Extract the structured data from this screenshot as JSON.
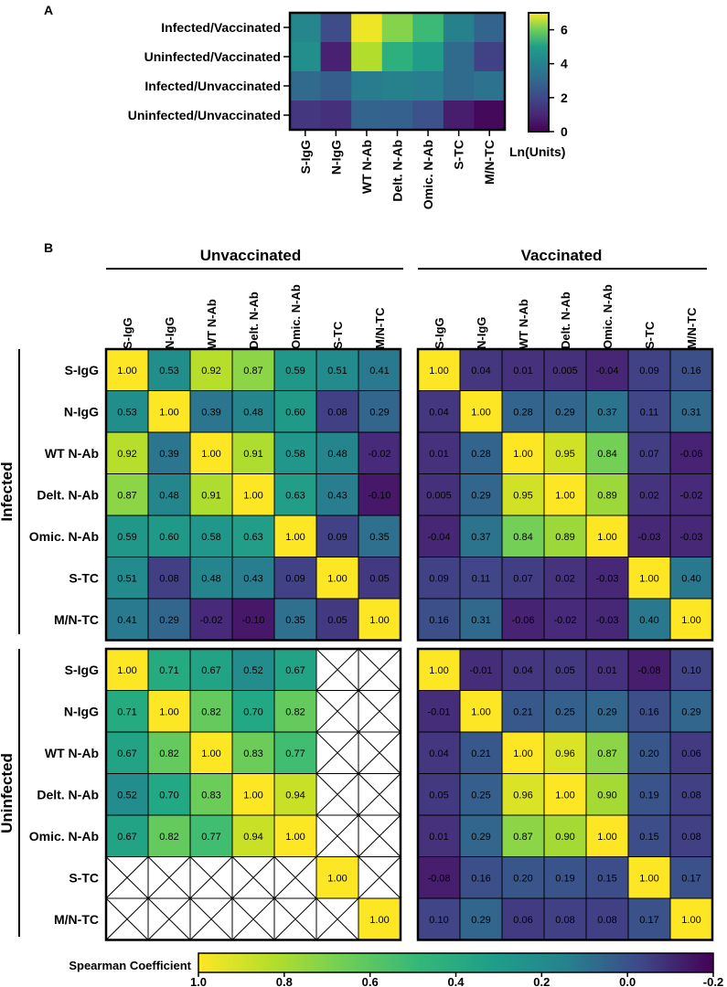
{
  "panel_a": {
    "label": "A",
    "chart_data": {
      "type": "heatmap",
      "rows": [
        "Infected/Vaccinated",
        "Uninfected/Vaccinated",
        "Infected/Unvaccinated",
        "Uninfected/Unvaccinated"
      ],
      "columns": [
        "S-IgG",
        "N-IgG",
        "WT N-Ab",
        "Delt. N-Ab",
        "Omic. N-Ab",
        "S-TC",
        "M/N-TC"
      ],
      "values": [
        [
          4.0,
          2.0,
          6.9,
          6.2,
          5.6,
          3.8,
          2.8
        ],
        [
          4.3,
          0.8,
          6.5,
          5.4,
          4.8,
          3.0,
          1.7
        ],
        [
          3.0,
          2.6,
          3.6,
          3.8,
          3.7,
          3.0,
          3.3
        ],
        [
          1.4,
          1.2,
          2.8,
          2.7,
          2.2,
          0.7,
          0.2
        ]
      ],
      "colorbar": {
        "min": 0,
        "max": 7,
        "ticks": [
          "0",
          "2",
          "4",
          "6"
        ],
        "label": "Ln(Units)"
      }
    }
  },
  "panel_b": {
    "label": "B",
    "group_titles": {
      "unvaccinated": "Unvaccinated",
      "vaccinated": "Vaccinated"
    },
    "row_group_labels": {
      "infected": "Infected",
      "uninfected": "Uninfected"
    },
    "markers": [
      "S-IgG",
      "N-IgG",
      "WT N-Ab",
      "Delt. N-Ab",
      "Omic. N-Ab",
      "S-TC",
      "M/N-TC"
    ],
    "colorbar": {
      "label": "Spearman Coefficient",
      "min": -0.2,
      "max": 1.0,
      "ticks": [
        "1.0",
        "0.8",
        "0.6",
        "0.4",
        "0.2",
        "0.0",
        "-0.2"
      ]
    },
    "chart_data": [
      {
        "type": "heatmap",
        "title": "Infected / Unvaccinated",
        "values": [
          [
            "1.00",
            "0.53",
            "0.92",
            "0.87",
            "0.59",
            "0.51",
            "0.41"
          ],
          [
            "0.53",
            "1.00",
            "0.39",
            "0.48",
            "0.60",
            "0.08",
            "0.29"
          ],
          [
            "0.92",
            "0.39",
            "1.00",
            "0.91",
            "0.58",
            "0.48",
            "-0.02"
          ],
          [
            "0.87",
            "0.48",
            "0.91",
            "1.00",
            "0.63",
            "0.43",
            "-0.10"
          ],
          [
            "0.59",
            "0.60",
            "0.58",
            "0.63",
            "1.00",
            "0.09",
            "0.35"
          ],
          [
            "0.51",
            "0.08",
            "0.48",
            "0.43",
            "0.09",
            "1.00",
            "0.05"
          ],
          [
            "0.41",
            "0.29",
            "-0.02",
            "-0.10",
            "0.35",
            "0.05",
            "1.00"
          ]
        ]
      },
      {
        "type": "heatmap",
        "title": "Infected / Vaccinated",
        "values": [
          [
            "1.00",
            "0.04",
            "0.01",
            "0.005",
            "-0.04",
            "0.09",
            "0.16"
          ],
          [
            "0.04",
            "1.00",
            "0.28",
            "0.29",
            "0.37",
            "0.11",
            "0.31"
          ],
          [
            "0.01",
            "0.28",
            "1.00",
            "0.95",
            "0.84",
            "0.07",
            "-0.06"
          ],
          [
            "0.005",
            "0.29",
            "0.95",
            "1.00",
            "0.89",
            "0.02",
            "-0.02"
          ],
          [
            "-0.04",
            "0.37",
            "0.84",
            "0.89",
            "1.00",
            "-0.03",
            "-0.03"
          ],
          [
            "0.09",
            "0.11",
            "0.07",
            "0.02",
            "-0.03",
            "1.00",
            "0.40"
          ],
          [
            "0.16",
            "0.31",
            "-0.06",
            "-0.02",
            "-0.03",
            "0.40",
            "1.00"
          ]
        ]
      },
      {
        "type": "heatmap",
        "title": "Uninfected / Unvaccinated",
        "values": [
          [
            "1.00",
            "0.71",
            "0.67",
            "0.52",
            "0.67",
            null,
            null
          ],
          [
            "0.71",
            "1.00",
            "0.82",
            "0.70",
            "0.82",
            null,
            null
          ],
          [
            "0.67",
            "0.82",
            "1.00",
            "0.83",
            "0.77",
            null,
            null
          ],
          [
            "0.52",
            "0.70",
            "0.83",
            "1.00",
            "0.94",
            null,
            null
          ],
          [
            "0.67",
            "0.82",
            "0.77",
            "0.94",
            "1.00",
            null,
            null
          ],
          [
            null,
            null,
            null,
            null,
            null,
            "1.00",
            null
          ],
          [
            null,
            null,
            null,
            null,
            null,
            null,
            "1.00"
          ]
        ]
      },
      {
        "type": "heatmap",
        "title": "Uninfected / Vaccinated",
        "values": [
          [
            "1.00",
            "-0.01",
            "0.04",
            "0.05",
            "0.01",
            "-0.08",
            "0.10"
          ],
          [
            "-0.01",
            "1.00",
            "0.21",
            "0.25",
            "0.29",
            "0.16",
            "0.29"
          ],
          [
            "0.04",
            "0.21",
            "1.00",
            "0.96",
            "0.87",
            "0.20",
            "0.06"
          ],
          [
            "0.05",
            "0.25",
            "0.96",
            "1.00",
            "0.90",
            "0.19",
            "0.08"
          ],
          [
            "0.01",
            "0.29",
            "0.87",
            "0.90",
            "1.00",
            "0.15",
            "0.08"
          ],
          [
            "-0.08",
            "0.16",
            "0.20",
            "0.19",
            "0.15",
            "1.00",
            "0.17"
          ],
          [
            "0.10",
            "0.29",
            "0.06",
            "0.08",
            "0.08",
            "0.17",
            "1.00"
          ]
        ]
      }
    ]
  }
}
